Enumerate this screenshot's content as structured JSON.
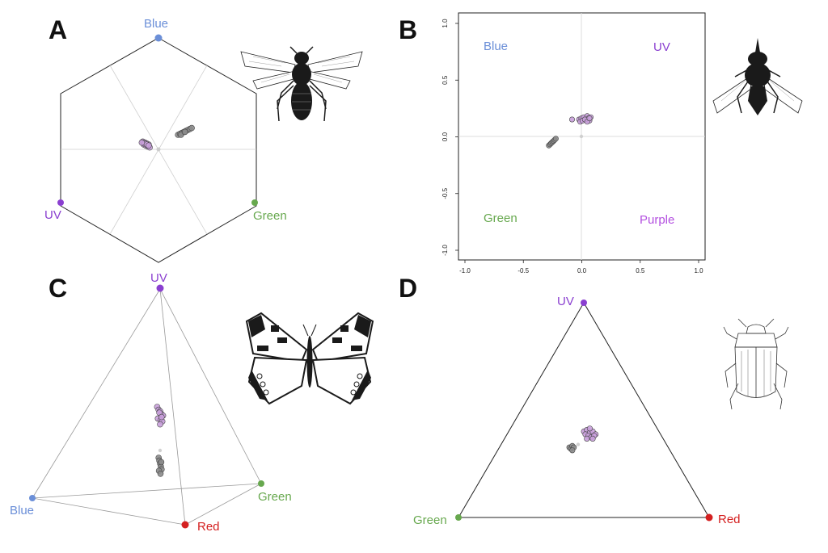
{
  "colors": {
    "blue": "#6b8fd8",
    "uv": "#8a3fd0",
    "green": "#67a84e",
    "red": "#d42020",
    "purple": "#b34fe0",
    "receptor_points": "#c9a0dc",
    "background_points": "#8c8c8c",
    "achromatic_point": "#cccccc"
  },
  "panels": {
    "A": {
      "letter": "A",
      "vertices": {
        "blue": "Blue",
        "uv": "UV",
        "green": "Green"
      },
      "icon": "bee-icon"
    },
    "B": {
      "letter": "B",
      "quadrants": {
        "blue": "Blue",
        "uv": "UV",
        "green": "Green",
        "purple": "Purple"
      },
      "icon": "fly-icon"
    },
    "C": {
      "letter": "C",
      "vertices": {
        "uv": "UV",
        "blue": "Blue",
        "green": "Green",
        "red": "Red"
      },
      "icon": "butterfly-icon"
    },
    "D": {
      "letter": "D",
      "vertices": {
        "uv": "UV",
        "green": "Green",
        "red": "Red"
      },
      "icon": "beetle-icon"
    }
  },
  "chart_data": [
    {
      "panel": "A",
      "type": "scatter",
      "title": "",
      "layout": "hexagon color space",
      "grid": true,
      "vertices": [
        "Blue",
        "UV",
        "Green"
      ],
      "series": [
        {
          "name": "",
          "color": "#c9a0dc",
          "x": [
            -0.16,
            -0.14,
            -0.12,
            -0.1,
            -0.15,
            -0.13,
            -0.11,
            -0.09,
            -0.14,
            -0.12,
            -0.1,
            -0.17
          ],
          "y": [
            0.08,
            0.07,
            0.06,
            0.05,
            0.05,
            0.04,
            0.03,
            0.02,
            0.06,
            0.05,
            0.04,
            0.07
          ]
        },
        {
          "name": "",
          "color": "#8c8c8c",
          "x": [
            0.2,
            0.22,
            0.24,
            0.26,
            0.28,
            0.3,
            0.32,
            0.34,
            0.23,
            0.27
          ],
          "y": [
            0.15,
            0.16,
            0.17,
            0.18,
            0.19,
            0.2,
            0.21,
            0.22,
            0.15,
            0.18
          ]
        }
      ]
    },
    {
      "panel": "B",
      "type": "scatter",
      "title": "",
      "xlim": [
        -1.0,
        1.0
      ],
      "ylim": [
        -1.0,
        1.0
      ],
      "xticks": [
        "-1.0",
        "-0.5",
        "0.0",
        "0.5",
        "1.0"
      ],
      "yticks": [
        "-1.0",
        "-0.5",
        "0.0",
        "0.5",
        "1.0"
      ],
      "grid": false,
      "quadrant_labels": [
        "Blue",
        "UV",
        "Green",
        "Purple"
      ],
      "series": [
        {
          "name": "",
          "color": "#c9a0dc",
          "x": [
            -0.02,
            0.0,
            0.02,
            0.04,
            0.05,
            0.06,
            0.07,
            0.08,
            -0.01,
            0.01,
            0.03,
            0.05,
            0.07,
            -0.08
          ],
          "y": [
            0.15,
            0.16,
            0.17,
            0.15,
            0.18,
            0.16,
            0.14,
            0.17,
            0.13,
            0.14,
            0.15,
            0.13,
            0.16,
            0.15
          ]
        },
        {
          "name": "",
          "color": "#8c8c8c",
          "x": [
            -0.28,
            -0.27,
            -0.26,
            -0.25,
            -0.24,
            -0.23,
            -0.22
          ],
          "y": [
            -0.08,
            -0.07,
            -0.06,
            -0.05,
            -0.04,
            -0.03,
            -0.02
          ]
        },
        {
          "name": "",
          "color": "#cccccc",
          "x": [
            0.0
          ],
          "y": [
            0.0
          ]
        }
      ]
    },
    {
      "panel": "C",
      "type": "scatter",
      "title": "",
      "layout": "tetrahedral color space",
      "grid": false,
      "vertices": [
        "UV",
        "Blue",
        "Green",
        "Red"
      ],
      "series": [
        {
          "name": "",
          "color": "#c9a0dc",
          "x": [
            -0.02,
            -0.01,
            0.0,
            0.01,
            0.02,
            -0.015,
            0.005,
            0.015,
            0.0,
            -0.005,
            0.01
          ],
          "y": [
            0.3,
            0.28,
            0.27,
            0.25,
            0.24,
            0.22,
            0.21,
            0.2,
            0.18,
            0.26,
            0.23
          ]
        },
        {
          "name": "",
          "color": "#8c8c8c",
          "x": [
            -0.01,
            -0.005,
            0.0,
            0.005,
            0.01,
            -0.008,
            0.003,
            0.008
          ],
          "y": [
            -0.05,
            -0.07,
            -0.09,
            -0.11,
            -0.13,
            -0.14,
            -0.16,
            -0.08
          ]
        },
        {
          "name": "",
          "color": "#cccccc",
          "x": [
            0.0
          ],
          "y": [
            0.0
          ]
        }
      ]
    },
    {
      "panel": "D",
      "type": "scatter",
      "title": "",
      "layout": "Maxwell triangle",
      "grid": false,
      "vertices": [
        "UV",
        "Green",
        "Red"
      ],
      "series": [
        {
          "name": "",
          "color": "#c9a0dc",
          "x": [
            0.02,
            0.03,
            0.04,
            0.05,
            0.06,
            0.025,
            0.035,
            0.045,
            0.055,
            0.04,
            0.05,
            0.03
          ],
          "y": [
            0.17,
            0.18,
            0.16,
            0.17,
            0.15,
            0.15,
            0.14,
            0.13,
            0.14,
            0.19,
            0.12,
            0.12
          ]
        },
        {
          "name": "",
          "color": "#8c8c8c",
          "x": [
            -0.03,
            -0.025,
            -0.02,
            -0.015,
            -0.02
          ],
          "y": [
            0.06,
            0.05,
            0.07,
            0.06,
            0.04
          ]
        },
        {
          "name": "",
          "color": "#cccccc",
          "x": [
            0.0
          ],
          "y": [
            0.08
          ]
        }
      ]
    }
  ]
}
